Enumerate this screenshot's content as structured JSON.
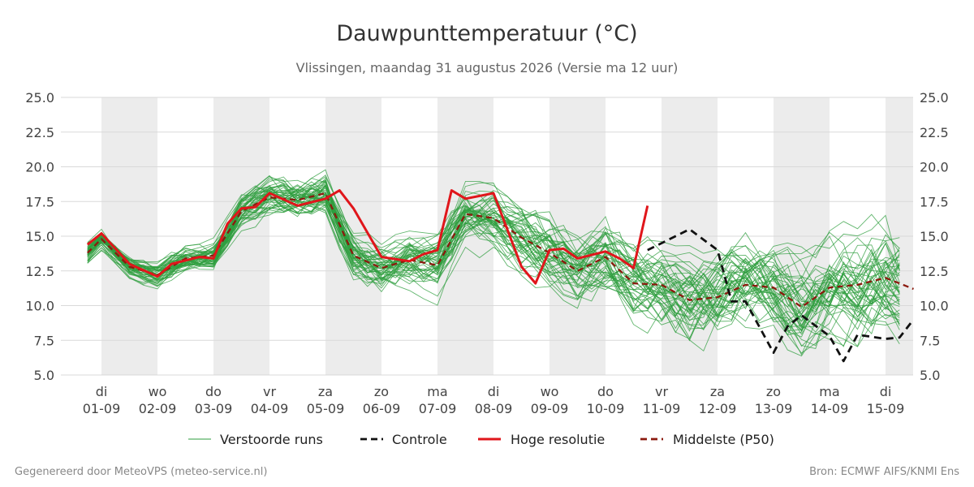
{
  "chart_data": {
    "type": "line",
    "title": "Dauwpunttemperatuur (°C)",
    "subtitle": "Vlissingen, maandag 31 augustus 2026 (Versie ma 12 uur)",
    "ylim": [
      5.0,
      25.0
    ],
    "yticks": [
      "5.0",
      "7.5",
      "10.0",
      "12.5",
      "15.0",
      "17.5",
      "20.0",
      "22.5",
      "25.0"
    ],
    "x_start": "2026-09-01",
    "x_end": "2026-09-15",
    "grid": true,
    "weekend_shading": true,
    "x_ticks": [
      {
        "day": "di",
        "date": "01-09"
      },
      {
        "day": "wo",
        "date": "02-09"
      },
      {
        "day": "do",
        "date": "03-09"
      },
      {
        "day": "vr",
        "date": "04-09"
      },
      {
        "day": "za",
        "date": "05-09"
      },
      {
        "day": "zo",
        "date": "06-09"
      },
      {
        "day": "ma",
        "date": "07-09"
      },
      {
        "day": "di",
        "date": "08-09"
      },
      {
        "day": "wo",
        "date": "09-09"
      },
      {
        "day": "do",
        "date": "10-09"
      },
      {
        "day": "vr",
        "date": "11-09"
      },
      {
        "day": "za",
        "date": "12-09"
      },
      {
        "day": "zo",
        "date": "13-09"
      },
      {
        "day": "ma",
        "date": "14-09"
      },
      {
        "day": "di",
        "date": "15-09"
      }
    ],
    "legend_position": "bottom",
    "legend": [
      {
        "label": "Verstoorde runs",
        "color": "#2e9e3e",
        "style": "thin"
      },
      {
        "label": "Controle",
        "color": "#111111",
        "style": "dashed"
      },
      {
        "label": "Hoge resolutie",
        "color": "#e0161b",
        "style": "solid"
      },
      {
        "label": "Middelste (P50)",
        "color": "#8b1a0e",
        "style": "dashed"
      }
    ],
    "ensemble_members": 50,
    "ensemble_range": [
      5.3,
      20.6
    ],
    "series": [
      {
        "name": "Hoge resolutie",
        "color": "#e0161b",
        "x": [
          "2026-08-31T18:00",
          "2026-09-01T00:00",
          "2026-09-01T12:00",
          "2026-09-02T00:00",
          "2026-09-02T06:00",
          "2026-09-02T18:00",
          "2026-09-03T00:00",
          "2026-09-03T06:00",
          "2026-09-03T12:00",
          "2026-09-03T18:00",
          "2026-09-04T00:00",
          "2026-09-04T12:00",
          "2026-09-05T00:00",
          "2026-09-05T06:00",
          "2026-09-05T12:00",
          "2026-09-06T00:00",
          "2026-09-06T12:00",
          "2026-09-06T18:00",
          "2026-09-07T00:00",
          "2026-09-07T06:00",
          "2026-09-07T12:00",
          "2026-09-08T00:00",
          "2026-09-08T12:00",
          "2026-09-08T18:00",
          "2026-09-09T00:00",
          "2026-09-09T06:00",
          "2026-09-09T12:00",
          "2026-09-10T00:00",
          "2026-09-10T06:00",
          "2026-09-10T12:00",
          "2026-09-10T18:00"
        ],
        "values": [
          14.4,
          15.2,
          13.0,
          12.1,
          13.0,
          13.5,
          13.4,
          15.9,
          17.0,
          17.1,
          18.1,
          17.2,
          17.7,
          18.3,
          17.0,
          13.5,
          13.2,
          13.7,
          14.0,
          18.3,
          17.7,
          18.1,
          12.8,
          11.6,
          14.0,
          14.1,
          13.4,
          13.9,
          13.4,
          12.7,
          17.2
        ]
      },
      {
        "name": "Controle",
        "color": "#111111",
        "x": [
          "2026-09-10T18:00",
          "2026-09-11T00:00",
          "2026-09-11T06:00",
          "2026-09-11T12:00",
          "2026-09-12T00:00",
          "2026-09-12T06:00",
          "2026-09-12T12:00",
          "2026-09-13T00:00",
          "2026-09-13T06:00",
          "2026-09-13T12:00",
          "2026-09-14T00:00",
          "2026-09-14T06:00",
          "2026-09-14T12:00",
          "2026-09-15T00:00",
          "2026-09-15T06:00",
          "2026-09-15T12:00"
        ],
        "values": [
          14.0,
          14.5,
          15.0,
          15.5,
          14.0,
          10.3,
          10.3,
          6.6,
          8.5,
          9.3,
          7.8,
          6.0,
          7.9,
          7.6,
          7.7,
          9.0
        ]
      },
      {
        "name": "Middelste (P50)",
        "color": "#8b1a0e",
        "x": [
          "2026-08-31T18:00",
          "2026-09-01T00:00",
          "2026-09-01T12:00",
          "2026-09-02T00:00",
          "2026-09-02T12:00",
          "2026-09-03T00:00",
          "2026-09-03T12:00",
          "2026-09-04T00:00",
          "2026-09-04T12:00",
          "2026-09-05T00:00",
          "2026-09-05T12:00",
          "2026-09-06T00:00",
          "2026-09-06T12:00",
          "2026-09-07T00:00",
          "2026-09-07T12:00",
          "2026-09-08T00:00",
          "2026-09-08T12:00",
          "2026-09-09T00:00",
          "2026-09-09T12:00",
          "2026-09-10T00:00",
          "2026-09-10T12:00",
          "2026-09-11T00:00",
          "2026-09-11T12:00",
          "2026-09-12T00:00",
          "2026-09-12T12:00",
          "2026-09-13T00:00",
          "2026-09-13T12:00",
          "2026-09-14T00:00",
          "2026-09-14T12:00",
          "2026-09-15T00:00",
          "2026-09-15T12:00"
        ],
        "values": [
          13.8,
          14.8,
          12.8,
          12.2,
          13.4,
          13.6,
          16.8,
          17.8,
          17.6,
          18.1,
          13.6,
          12.7,
          13.3,
          12.9,
          16.6,
          16.3,
          14.9,
          13.8,
          12.5,
          13.5,
          11.6,
          11.5,
          10.4,
          10.6,
          11.5,
          11.3,
          9.9,
          11.3,
          11.5,
          12.0,
          11.2
        ]
      }
    ]
  },
  "footer": {
    "left": "Gegenereerd door MeteoVPS (meteo-service.nl)",
    "right": "Bron: ECMWF AIFS/KNMI Ens"
  },
  "colors": {
    "weekend": "#ececec",
    "grid": "#d9d9d9",
    "ensemble": "#2e9e3e"
  }
}
